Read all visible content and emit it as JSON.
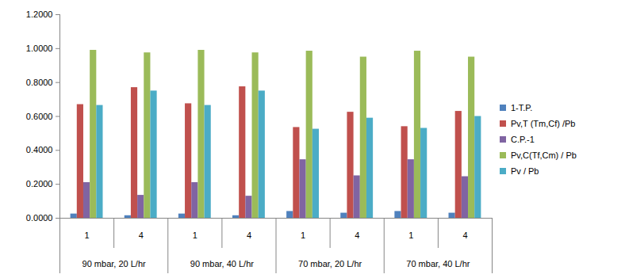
{
  "chart_data": {
    "type": "bar",
    "groups": [
      "90 mbar, 20 L/hr",
      "90 mbar, 40 L/hr",
      "70 mbar, 20 L/hr",
      "70 mbar, 40 L/hr"
    ],
    "categories": [
      "1",
      "4",
      "1",
      "4",
      "1",
      "4",
      "1",
      "4"
    ],
    "series": [
      {
        "name": "1-T.P.",
        "color": "#4F81BD",
        "values": [
          0.025,
          0.015,
          0.025,
          0.015,
          0.04,
          0.03,
          0.04,
          0.03
        ]
      },
      {
        "name": "Pv,T (Tm,Cf) /Pb",
        "color": "#C0504D",
        "values": [
          0.67,
          0.77,
          0.675,
          0.775,
          0.535,
          0.625,
          0.54,
          0.63
        ]
      },
      {
        "name": "C.P.-1",
        "color": "#8064A2",
        "values": [
          0.21,
          0.135,
          0.21,
          0.13,
          0.345,
          0.25,
          0.345,
          0.245
        ]
      },
      {
        "name": "Pv,C(Tf,Cm) / Pb",
        "color": "#9BBB59",
        "values": [
          0.99,
          0.975,
          0.99,
          0.975,
          0.985,
          0.95,
          0.985,
          0.95
        ]
      },
      {
        "name": "Pv / Pb",
        "color": "#4BACC6",
        "values": [
          0.665,
          0.75,
          0.665,
          0.75,
          0.525,
          0.59,
          0.53,
          0.6
        ]
      }
    ],
    "ylim": [
      0,
      1.2
    ],
    "yticks": [
      {
        "value": 0,
        "label": "0.0000"
      },
      {
        "value": 0.2,
        "label": "0.2000"
      },
      {
        "value": 0.4,
        "label": "0.4000"
      },
      {
        "value": 0.6,
        "label": "0.6000"
      },
      {
        "value": 0.8,
        "label": "0.8000"
      },
      {
        "value": 1,
        "label": "1.0000"
      },
      {
        "value": 1.2,
        "label": "1.2000"
      }
    ],
    "grid": false,
    "legend": "right"
  }
}
